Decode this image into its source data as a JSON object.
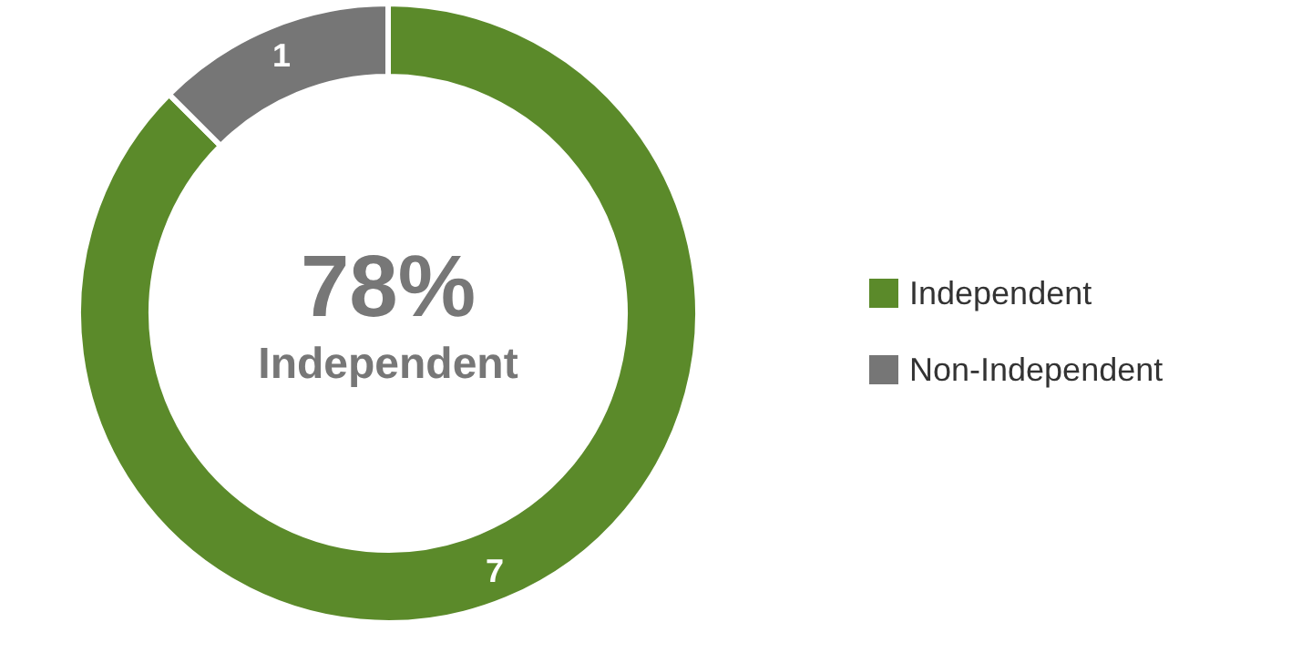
{
  "chart_data": {
    "type": "donut",
    "categories": [
      "Independent",
      "Non-Independent"
    ],
    "values": [
      7,
      1
    ],
    "colors": [
      "#5b8a2a",
      "#767676"
    ],
    "data_labels": true,
    "legend": "right",
    "annotations": [
      "78%",
      "Independent"
    ]
  }
}
